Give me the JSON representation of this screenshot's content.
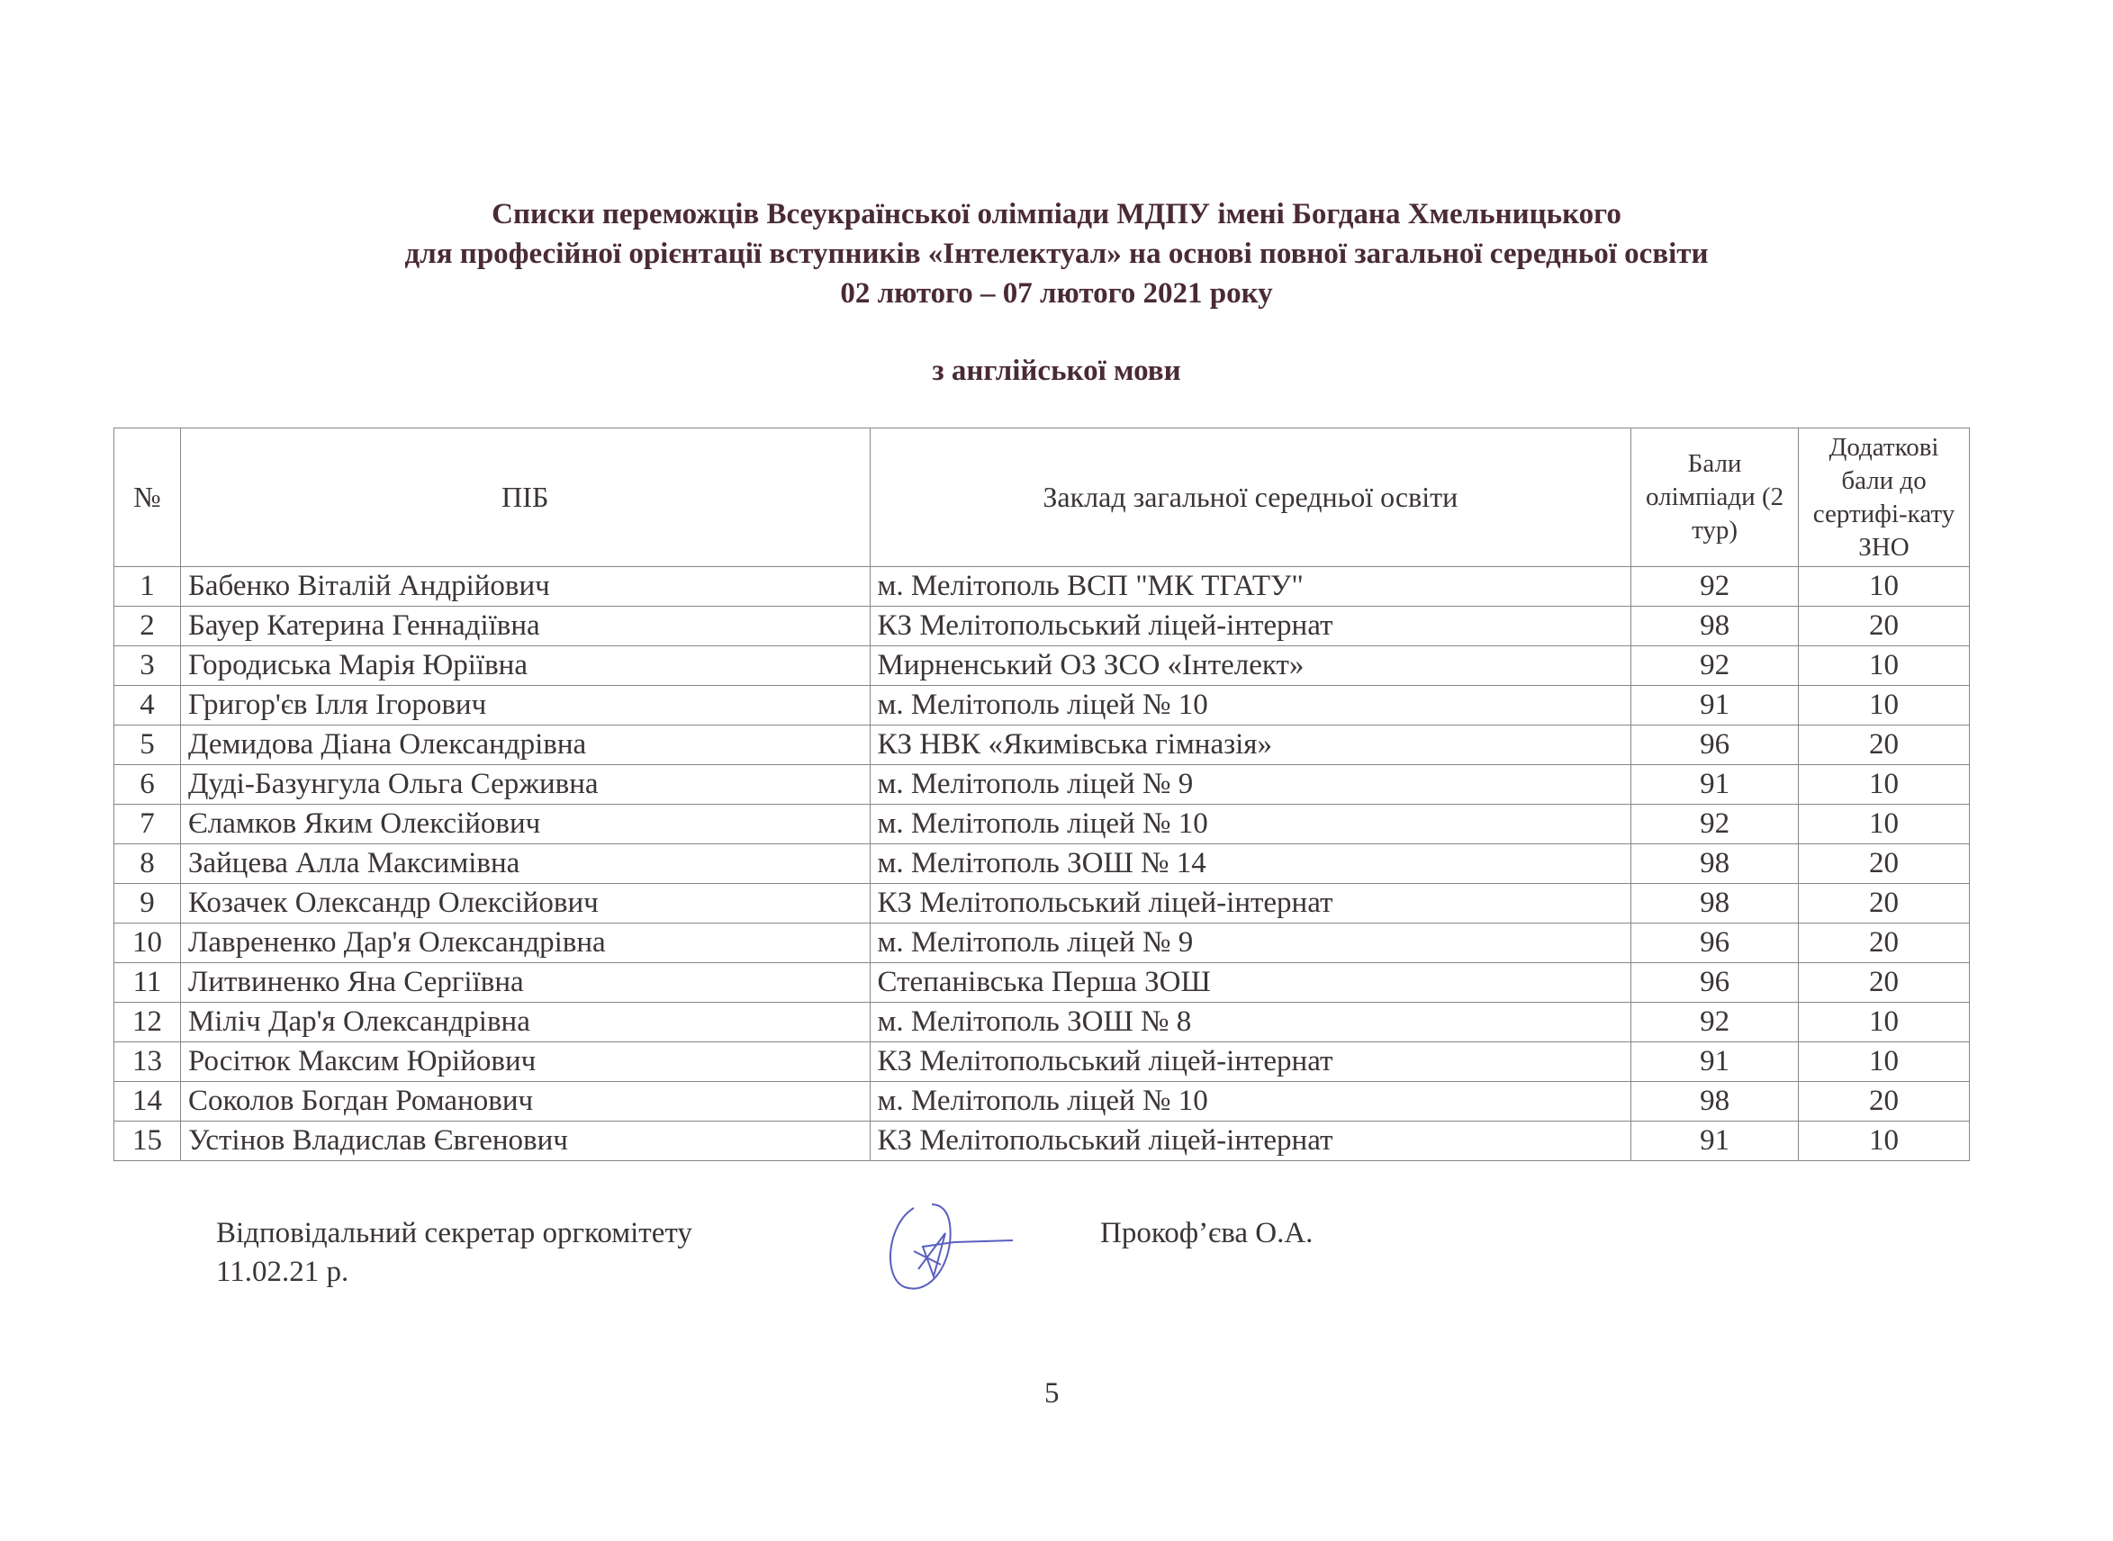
{
  "header": {
    "line1": "Списки переможців Всеукраїнської олімпіади МДПУ імені Богдана Хмельницького",
    "line2": "для професійної орієнтації вступників «Інтелектуал» на основі повної загальної середньої освіти",
    "line3": "02 лютого – 07 лютого 2021 року",
    "subject": "з англійської мови"
  },
  "table": {
    "columns": [
      "№",
      "ПІБ",
      "Заклад загальної середньої освіти",
      "Бали олімпіади (2 тур)",
      "Додаткові бали до сертифі-кату ЗНО"
    ],
    "rows": [
      [
        "1",
        "Бабенко Віталій Андрійович",
        "м. Мелітополь ВСП \"МК ТГАТУ\"",
        "92",
        "10"
      ],
      [
        "2",
        "Бауер Катерина Геннадіївна",
        "КЗ Мелітопольський ліцей-інтернат",
        "98",
        "20"
      ],
      [
        "3",
        "Городиська Марія Юріївна",
        "Мирненський ОЗ ЗСО «Інтелект»",
        "92",
        "10"
      ],
      [
        "4",
        "Григор'єв Ілля Ігорович",
        "м. Мелітополь ліцей № 10",
        "91",
        "10"
      ],
      [
        "5",
        "Демидова Діана Олександрівна",
        "КЗ НВК «Якимівська гімназія»",
        "96",
        "20"
      ],
      [
        "6",
        "Дуді-Базунгула Ольга Серживна",
        "м. Мелітополь ліцей № 9",
        "91",
        "10"
      ],
      [
        "7",
        "Єламков Яким Олексійович",
        "м. Мелітополь ліцей № 10",
        "92",
        "10"
      ],
      [
        "8",
        "Зайцева Алла Максимівна",
        "м. Мелітополь ЗОШ № 14",
        "98",
        "20"
      ],
      [
        "9",
        "Козачек Олександр Олексійович",
        "КЗ Мелітопольський ліцей-інтернат",
        "98",
        "20"
      ],
      [
        "10",
        "Лаврененко Дар'я Олександрівна",
        "м. Мелітополь ліцей № 9",
        "96",
        "20"
      ],
      [
        "11",
        "Литвиненко Яна Сергіївна",
        "Степанівська Перша ЗОШ",
        "96",
        "20"
      ],
      [
        "12",
        "Міліч Дар'я Олександрівна",
        "м. Мелітополь ЗОШ № 8",
        "92",
        "10"
      ],
      [
        "13",
        "Росітюк Максим Юрійович",
        "КЗ Мелітопольський ліцей-інтернат",
        "91",
        "10"
      ],
      [
        "14",
        "Соколов Богдан Романович",
        "м. Мелітополь ліцей № 10",
        "98",
        "20"
      ],
      [
        "15",
        "Устінов Владислав Євгенович",
        "КЗ Мелітопольський ліцей-інтернат",
        "91",
        "10"
      ]
    ]
  },
  "footer": {
    "position": "Відповідальний секретар оргкомітету",
    "date": "11.02.21 р.",
    "name": "Прокоф’єва О.А.",
    "signature_color": "#5a5fc0"
  },
  "page_number": "5"
}
